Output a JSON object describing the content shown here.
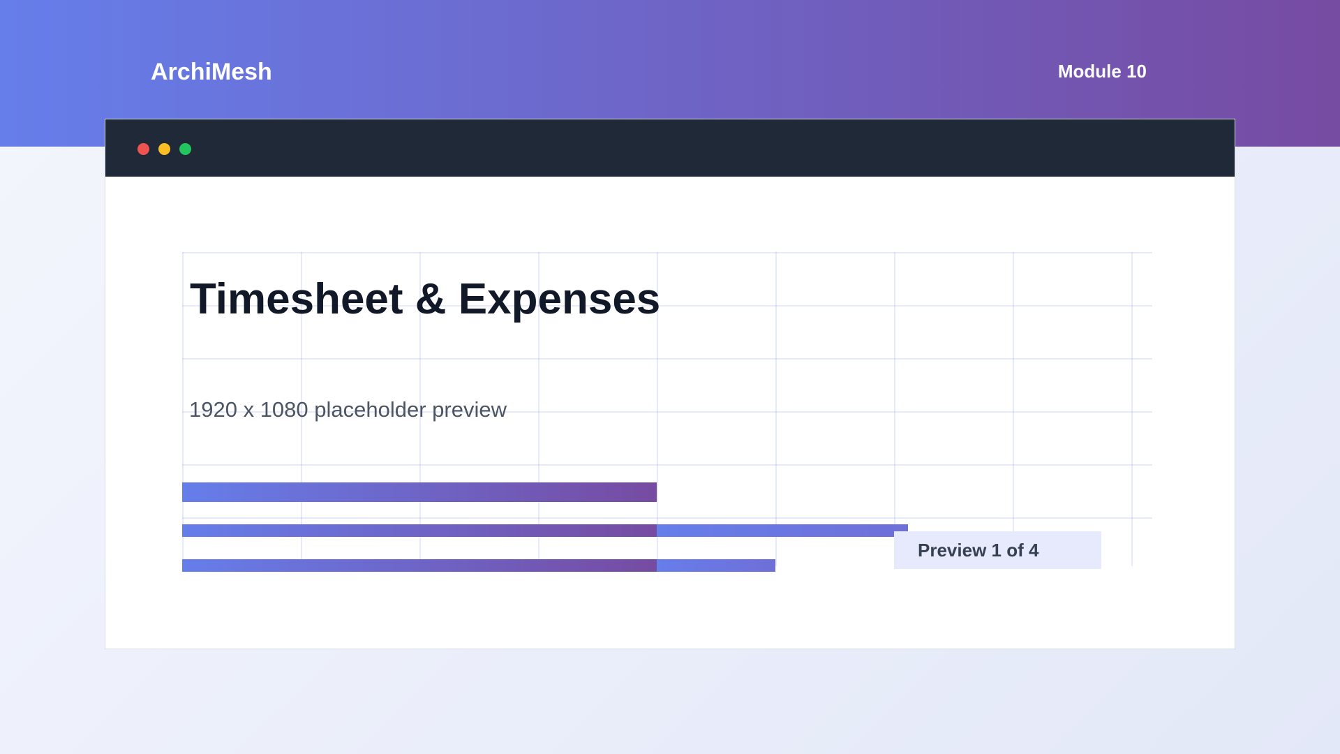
{
  "header": {
    "brand": "ArchiMesh",
    "module_label": "Module 10"
  },
  "window": {
    "controls": [
      "close",
      "minimize",
      "maximize"
    ]
  },
  "main": {
    "title": "Timesheet & Expenses",
    "subtitle": "1920 x 1080 placeholder preview",
    "preview_label": "Preview 1 of 4"
  },
  "colors": {
    "accent_start": "#667eea",
    "accent_end": "#764ba2",
    "titlebar": "#1f2937",
    "close": "#ef5350",
    "minimize": "#fbbf24",
    "maximize": "#22c55e"
  }
}
